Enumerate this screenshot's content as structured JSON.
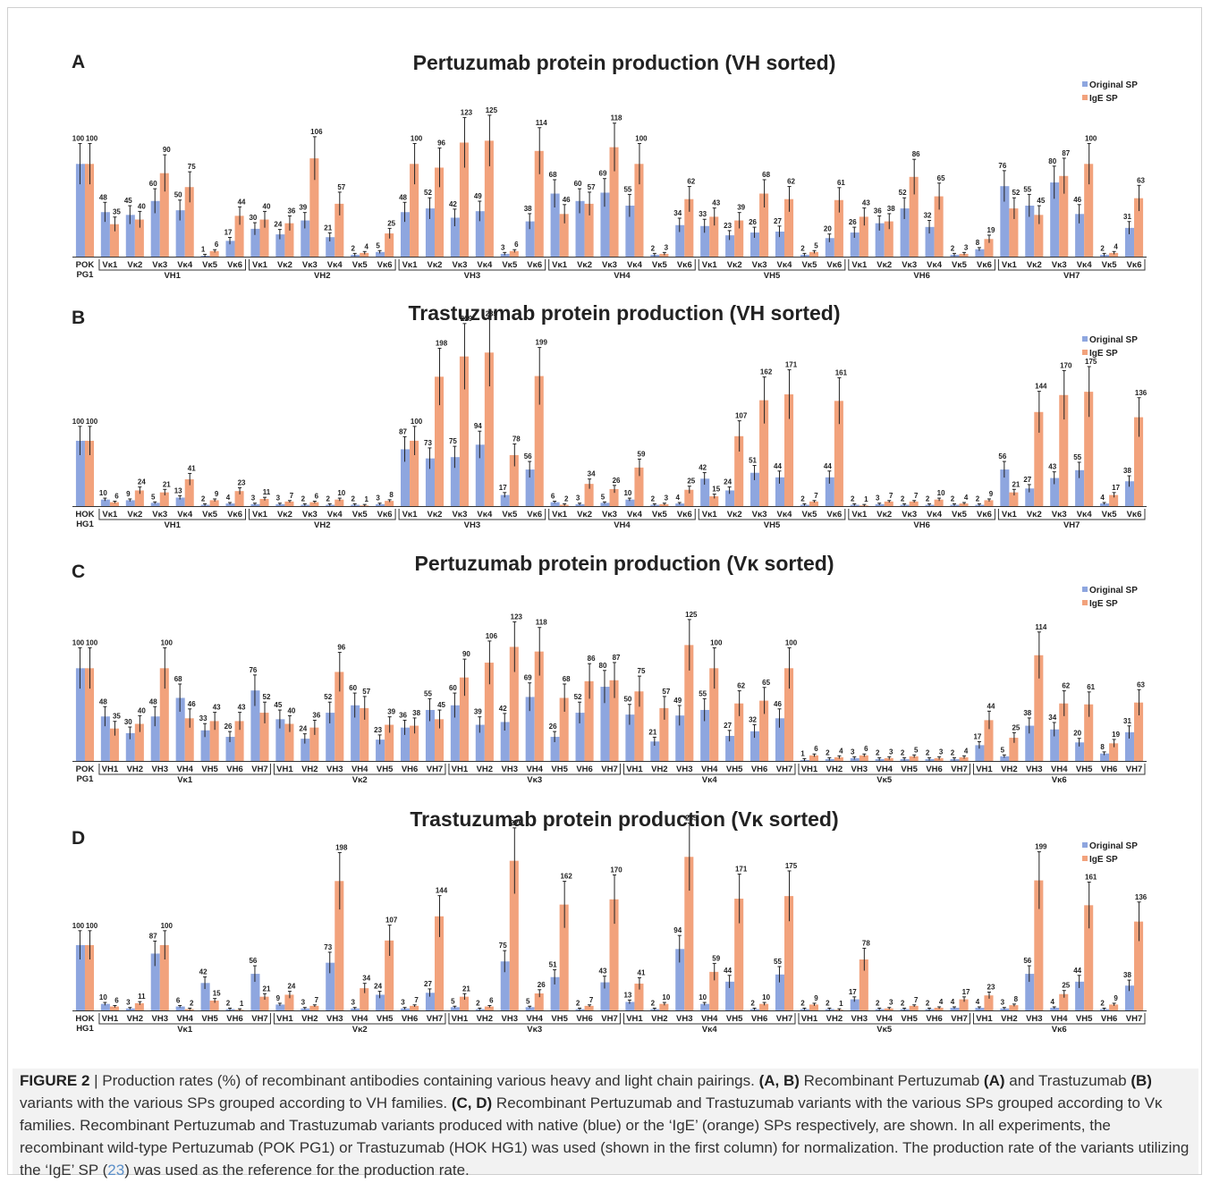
{
  "colors": {
    "original": "#8ea6df",
    "ige": "#f2a27c",
    "error": "#222222",
    "axis": "#333333"
  },
  "legend": {
    "original": "Original SP",
    "ige": "IgE SP"
  },
  "caption": {
    "figure_label": "FIGURE 2",
    "separator": "|",
    "text_1": "Production rates (%) of recombinant antibodies containing various heavy and light chain pairings.",
    "bold_1": "(A, B)",
    "text_2": "Recombinant Pertuzumab",
    "bold_2": "(A)",
    "text_3": "and Trastuzumab",
    "bold_3": "(B)",
    "text_4": "variants with the various SPs grouped according to VH families.",
    "bold_4": "(C, D)",
    "text_5": "Recombinant Pertuzumab and Trastuzumab variants with the various SPs grouped according to Vκ families. Recombinant Pertuzumab and Trastuzumab variants produced with native (blue) or the ‘IgE’ (orange) SPs respectively, are shown. In all experiments, the recombinant wild-type Pertuzumab (POK PG1) or Trastuzumab (HOK HG1) was used (shown in the first column) for normalization. The production rate of the variants utilizing the ‘IgE’ SP (",
    "ref": "23",
    "text_6": ") was used as the reference for the production rate."
  },
  "chart_data": [
    {
      "type": "bar",
      "panel": "A",
      "title": "Pertuzumab protein production (VH sorted)",
      "control": [
        "POK",
        "PG1"
      ],
      "control_values": {
        "original": 100,
        "ige": 100
      },
      "group_labels": [
        "VH1",
        "VH2",
        "VH3",
        "VH4",
        "VH5",
        "VH6",
        "VH7"
      ],
      "sub_labels": [
        "Vκ1",
        "Vκ2",
        "Vκ3",
        "Vκ4",
        "Vκ5",
        "Vκ6"
      ],
      "series": [
        {
          "name": "Original SP",
          "values": [
            [
              48,
              45,
              60,
              50,
              1,
              17
            ],
            [
              30,
              24,
              39,
              21,
              2,
              5
            ],
            [
              48,
              52,
              42,
              49,
              3,
              38
            ],
            [
              68,
              60,
              69,
              55,
              2,
              34
            ],
            [
              33,
              23,
              26,
              27,
              2,
              20
            ],
            [
              26,
              36,
              52,
              32,
              2,
              8
            ],
            [
              76,
              55,
              80,
              46,
              2,
              31
            ]
          ]
        },
        {
          "name": "IgE SP",
          "values": [
            [
              35,
              40,
              90,
              75,
              6,
              44
            ],
            [
              40,
              36,
              106,
              57,
              4,
              25
            ],
            [
              100,
              96,
              123,
              125,
              6,
              114
            ],
            [
              46,
              57,
              118,
              100,
              3,
              62
            ],
            [
              43,
              39,
              68,
              62,
              5,
              61
            ],
            [
              43,
              38,
              86,
              65,
              3,
              19
            ],
            [
              52,
              45,
              87,
              100,
              4,
              63
            ]
          ]
        }
      ],
      "ylim": [
        0,
        135
      ]
    },
    {
      "type": "bar",
      "panel": "B",
      "title": "Trastuzumab protein production (VH sorted)",
      "control": [
        "HOK",
        "HG1"
      ],
      "control_values": {
        "original": 100,
        "ige": 100
      },
      "group_labels": [
        "VH1",
        "VH2",
        "VH3",
        "VH4",
        "VH5",
        "VH6",
        "VH7"
      ],
      "sub_labels": [
        "Vκ1",
        "Vκ2",
        "Vκ3",
        "Vκ4",
        "Vκ5",
        "Vκ6"
      ],
      "series": [
        {
          "name": "Original SP",
          "values": [
            [
              10,
              9,
              5,
              13,
              2,
              4
            ],
            [
              3,
              3,
              2,
              2,
              2,
              3
            ],
            [
              87,
              73,
              75,
              94,
              17,
              56
            ],
            [
              6,
              3,
              5,
              10,
              2,
              4
            ],
            [
              42,
              24,
              51,
              44,
              2,
              44
            ],
            [
              2,
              3,
              2,
              2,
              2,
              2
            ],
            [
              56,
              27,
              43,
              55,
              4,
              38
            ]
          ]
        },
        {
          "name": "IgE SP",
          "values": [
            [
              6,
              24,
              21,
              41,
              9,
              23
            ],
            [
              11,
              7,
              6,
              10,
              1,
              8
            ],
            [
              100,
              198,
              229,
              235,
              78,
              199
            ],
            [
              2,
              34,
              26,
              59,
              3,
              25
            ],
            [
              15,
              107,
              162,
              171,
              7,
              161
            ],
            [
              1,
              7,
              7,
              10,
              4,
              9
            ],
            [
              21,
              144,
              170,
              175,
              17,
              136
            ]
          ]
        }
      ],
      "ylim": [
        0,
        260
      ]
    },
    {
      "type": "bar",
      "panel": "C",
      "title": "Pertuzumab protein production (Vκ sorted)",
      "control": [
        "POK",
        "PG1"
      ],
      "control_values": {
        "original": 100,
        "ige": 100
      },
      "group_labels": [
        "Vκ1",
        "Vκ2",
        "Vκ3",
        "Vκ4",
        "Vκ5",
        "Vκ6"
      ],
      "sub_labels": [
        "VH1",
        "VH2",
        "VH3",
        "VH4",
        "VH5",
        "VH6",
        "VH7"
      ],
      "series": [
        {
          "name": "Original SP",
          "values": [
            [
              48,
              30,
              48,
              68,
              33,
              26,
              76
            ],
            [
              45,
              24,
              52,
              60,
              23,
              36,
              55
            ],
            [
              60,
              39,
              42,
              69,
              26,
              52,
              80
            ],
            [
              50,
              21,
              49,
              55,
              27,
              32,
              46
            ],
            [
              1,
              2,
              3,
              2,
              2,
              2,
              2
            ],
            [
              17,
              5,
              38,
              34,
              20,
              8,
              31
            ]
          ]
        },
        {
          "name": "IgE SP",
          "values": [
            [
              35,
              40,
              100,
              46,
              43,
              43,
              52
            ],
            [
              40,
              36,
              96,
              57,
              39,
              38,
              45
            ],
            [
              90,
              106,
              123,
              118,
              68,
              86,
              87
            ],
            [
              75,
              57,
              125,
              100,
              62,
              65,
              100
            ],
            [
              6,
              4,
              6,
              3,
              5,
              3,
              4
            ],
            [
              44,
              25,
              114,
              62,
              61,
              19,
              63
            ]
          ]
        }
      ],
      "ylim": [
        0,
        135
      ]
    },
    {
      "type": "bar",
      "panel": "D",
      "title": "Trastuzumab protein production (Vκ sorted)",
      "control": [
        "HOK",
        "HG1"
      ],
      "control_values": {
        "original": 100,
        "ige": 100
      },
      "group_labels": [
        "Vκ1",
        "Vκ2",
        "Vκ3",
        "Vκ4",
        "Vκ5",
        "Vκ6"
      ],
      "sub_labels": [
        "VH1",
        "VH2",
        "VH3",
        "VH4",
        "VH5",
        "VH6",
        "VH7"
      ],
      "series": [
        {
          "name": "Original SP",
          "values": [
            [
              10,
              3,
              87,
              6,
              42,
              2,
              56
            ],
            [
              9,
              3,
              73,
              3,
              24,
              3,
              27
            ],
            [
              5,
              2,
              75,
              5,
              51,
              2,
              43
            ],
            [
              13,
              2,
              94,
              10,
              44,
              2,
              55
            ],
            [
              2,
              2,
              17,
              2,
              2,
              2,
              4
            ],
            [
              4,
              3,
              56,
              4,
              44,
              2,
              38
            ]
          ]
        },
        {
          "name": "IgE SP",
          "values": [
            [
              6,
              11,
              100,
              2,
              15,
              1,
              21
            ],
            [
              24,
              7,
              198,
              34,
              107,
              7,
              144
            ],
            [
              21,
              6,
              229,
              26,
              162,
              7,
              170
            ],
            [
              41,
              10,
              235,
              59,
              171,
              10,
              175
            ],
            [
              9,
              1,
              78,
              3,
              7,
              4,
              17
            ],
            [
              23,
              8,
              199,
              25,
              161,
              9,
              136
            ]
          ]
        }
      ],
      "ylim": [
        0,
        260
      ]
    }
  ]
}
